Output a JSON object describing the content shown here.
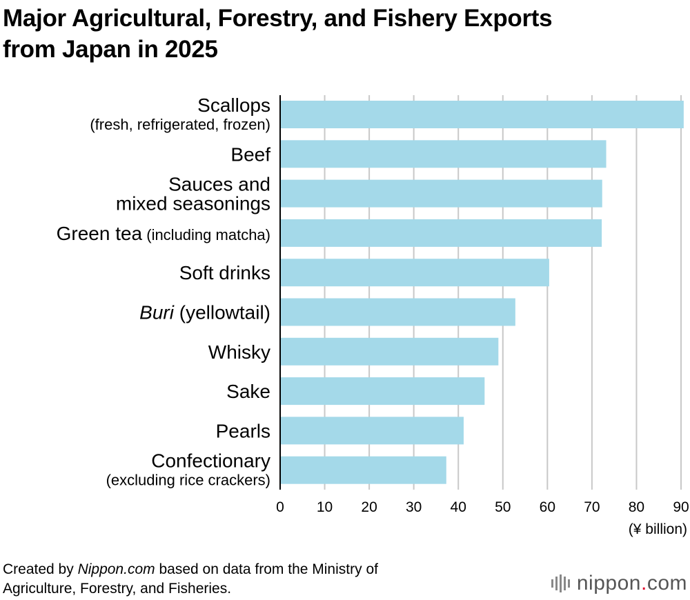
{
  "title_line1": "Major Agricultural, Forestry, and Fishery Exports",
  "title_line2": "from Japan in 2025",
  "source_line1_prefix": "Created by ",
  "source_line1_italic": "Nippon.com",
  "source_line1_suffix": " based on data from the Ministry of",
  "source_line2": "Agriculture, Forestry, and Fisheries.",
  "logo_word": "nippon",
  "logo_dot": ".",
  "logo_tld": "com",
  "colors": {
    "bar": "#a4d9e9",
    "grid": "#c8c8c8",
    "axis": "#000000",
    "logo_dot": "#e0002a"
  },
  "chart_data": {
    "type": "bar",
    "orientation": "horizontal",
    "categories": [
      "Scallops (fresh, refrigerated, frozen)",
      "Beef",
      "Sauces and mixed seasonings",
      "Green tea (including matcha)",
      "Soft drinks",
      "Buri (yellowtail)",
      "Whisky",
      "Sake",
      "Pearls",
      "Confectionary (excluding rice crackers)"
    ],
    "label_parts": [
      [
        {
          "text": "Scallops",
          "style": "main",
          "line": 0
        },
        {
          "text": "(fresh, refrigerated, frozen)",
          "style": "sub",
          "line": 1
        }
      ],
      [
        {
          "text": "Beef",
          "style": "main",
          "line": 0
        }
      ],
      [
        {
          "text": "Sauces and",
          "style": "main",
          "line": 0
        },
        {
          "text": "mixed seasonings",
          "style": "main",
          "line": 1
        }
      ],
      [
        {
          "text": "Green tea",
          "style": "main",
          "line": 0,
          "inline": true
        },
        {
          "text": "(including matcha)",
          "style": "sub",
          "line": 0,
          "inline": true
        }
      ],
      [
        {
          "text": "Soft drinks",
          "style": "main",
          "line": 0
        }
      ],
      [
        {
          "text": "Buri",
          "style": "main-italic",
          "line": 0,
          "inline": true
        },
        {
          "text": "(yellowtail)",
          "style": "main",
          "line": 0,
          "inline": true
        }
      ],
      [
        {
          "text": "Whisky",
          "style": "main",
          "line": 0
        }
      ],
      [
        {
          "text": "Sake",
          "style": "main",
          "line": 0
        }
      ],
      [
        {
          "text": "Pearls",
          "style": "main",
          "line": 0
        }
      ],
      [
        {
          "text": "Confectionary",
          "style": "main",
          "line": 0
        },
        {
          "text": "(excluding rice crackers)",
          "style": "sub",
          "line": 1
        }
      ]
    ],
    "values": [
      90.6,
      73.2,
      72.3,
      72.2,
      60.4,
      52.8,
      49.0,
      45.9,
      41.2,
      37.3
    ],
    "xlim": [
      0,
      90
    ],
    "xticks": [
      0,
      10,
      20,
      30,
      40,
      50,
      60,
      70,
      80,
      90
    ],
    "xlabel": "(¥ billion)",
    "grid": true
  }
}
